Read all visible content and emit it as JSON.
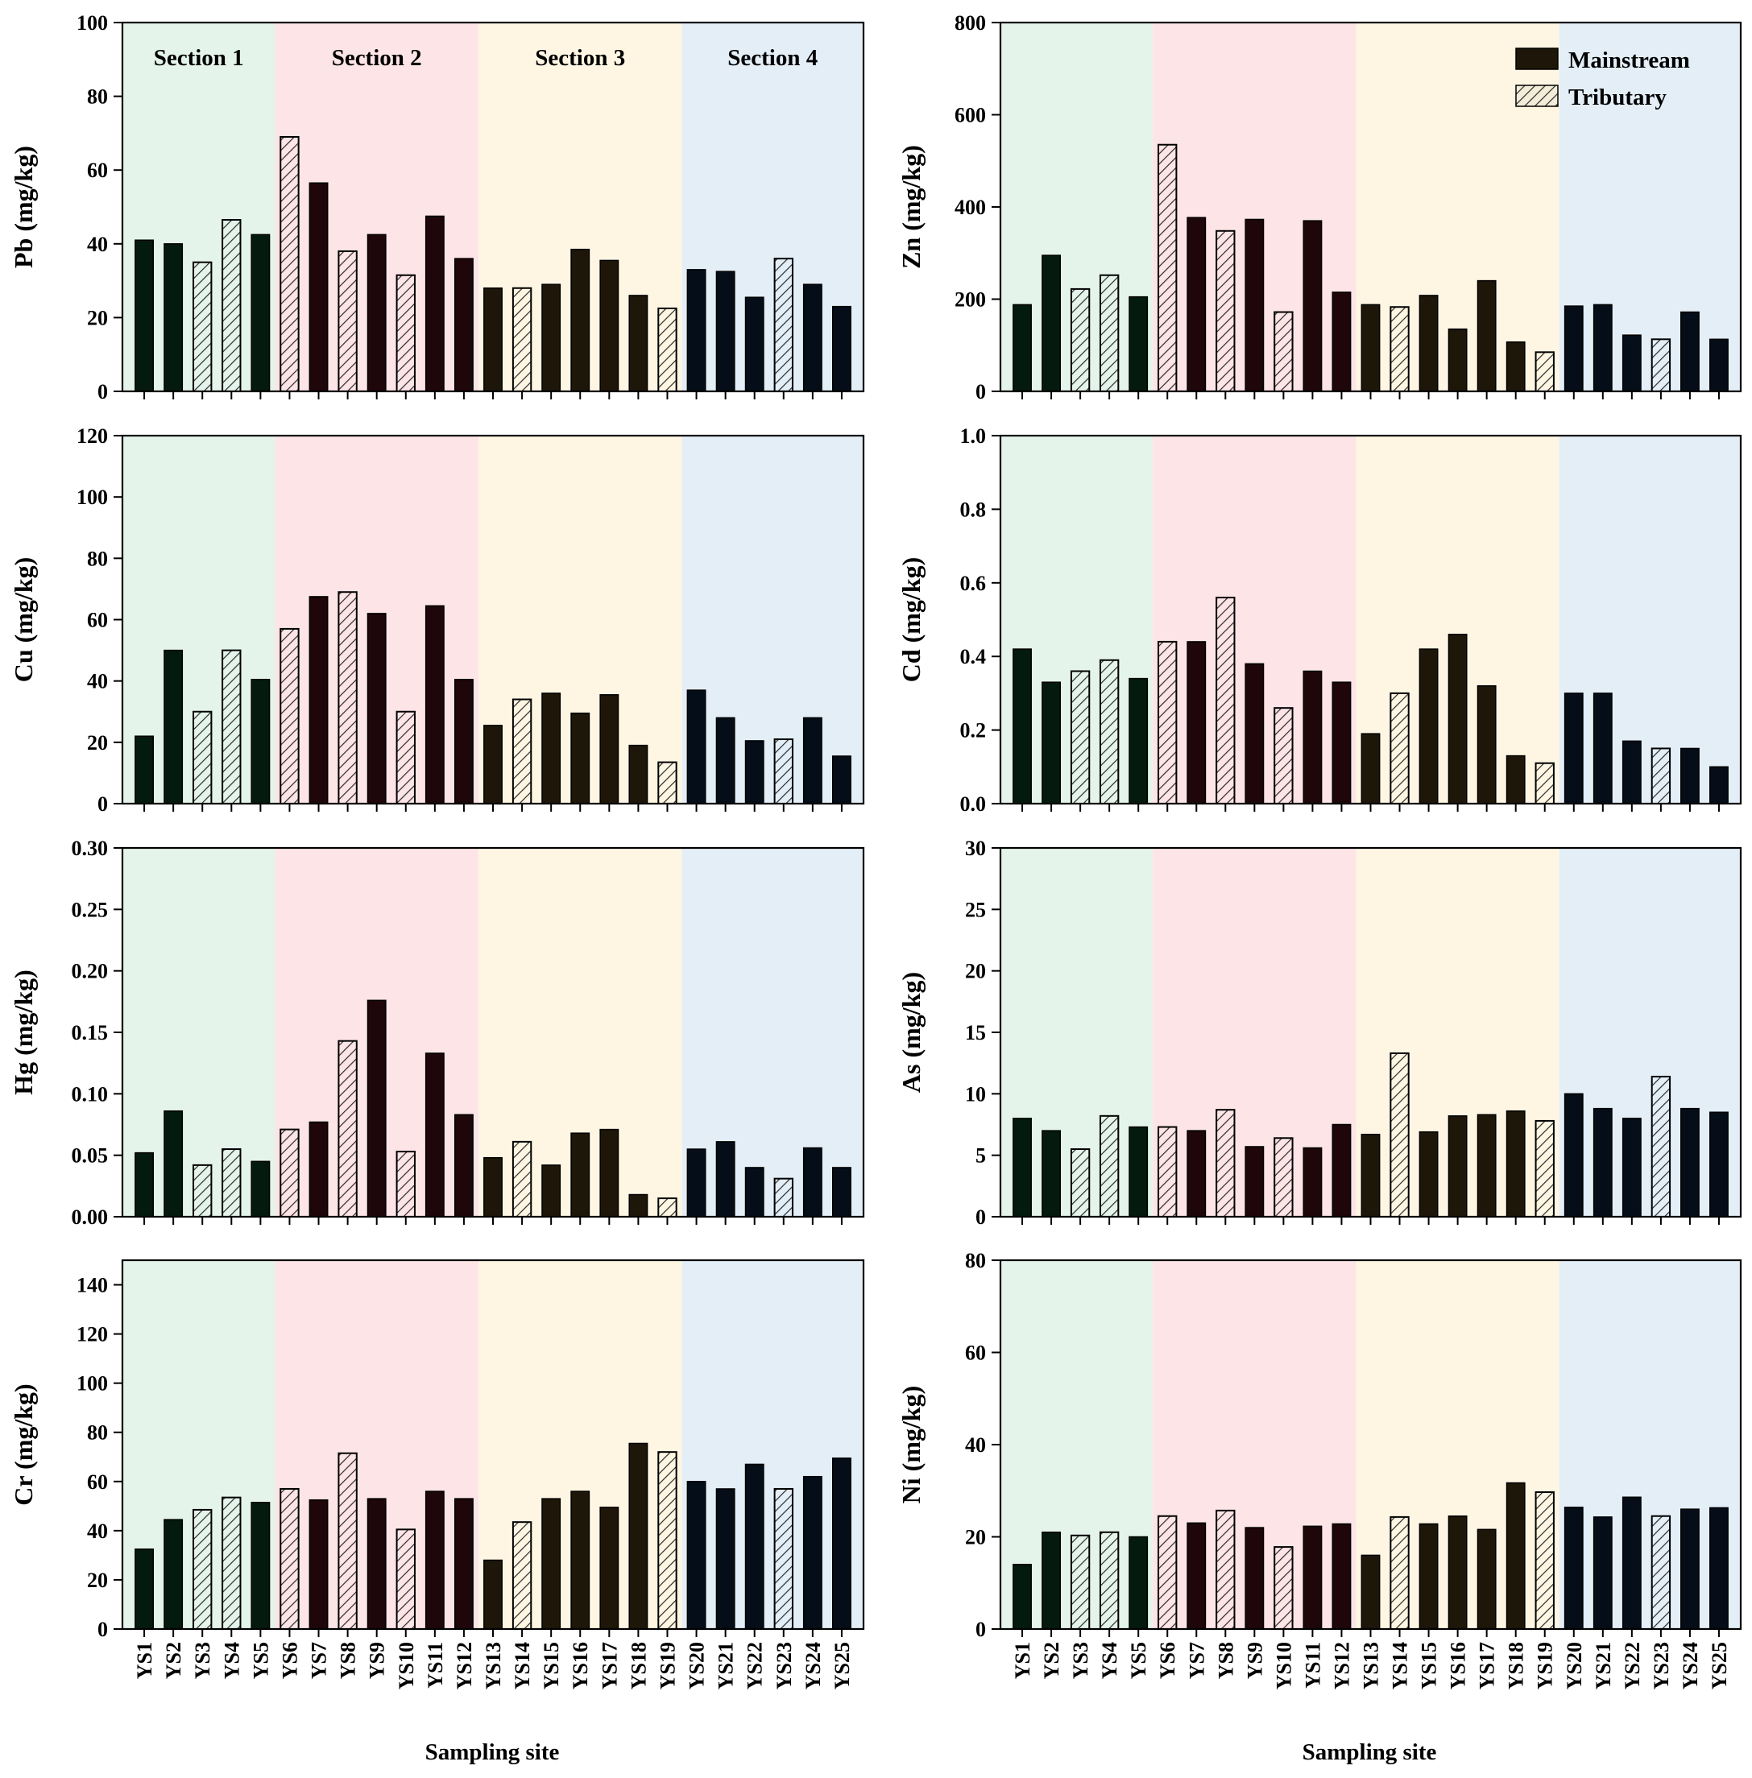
{
  "figure": {
    "xlabel": "Sampling site",
    "legend": {
      "placement": "top-right",
      "mainstream_label": "Mainstream",
      "tributary_label": "Tributary"
    },
    "section_labels": [
      "Section 1",
      "Section 2",
      "Section 3",
      "Section 4"
    ],
    "section_colors": [
      "#e4f4eb",
      "#fde4e6",
      "#fef6e3",
      "#e3eef7"
    ],
    "section_bar_colors": [
      "#041a0f",
      "#1e060a",
      "#1e1709",
      "#050d19"
    ],
    "tributary_sites": [
      "YS3",
      "YS4",
      "YS6",
      "YS8",
      "YS10",
      "YS14",
      "YS19",
      "YS23"
    ],
    "sections": [
      {
        "name": "Section 1",
        "sites": [
          "YS1",
          "YS2",
          "YS3",
          "YS4",
          "YS5"
        ]
      },
      {
        "name": "Section 2",
        "sites": [
          "YS6",
          "YS7",
          "YS8",
          "YS9",
          "YS10",
          "YS11",
          "YS12"
        ]
      },
      {
        "name": "Section 3",
        "sites": [
          "YS13",
          "YS14",
          "YS15",
          "YS16",
          "YS17",
          "YS18",
          "YS19"
        ]
      },
      {
        "name": "Section 4",
        "sites": [
          "YS20",
          "YS21",
          "YS22",
          "YS23",
          "YS24",
          "YS25"
        ]
      }
    ]
  },
  "chart_data": [
    {
      "type": "bar",
      "ylabel": "Pb (mg/kg)",
      "ylim": [
        0,
        100
      ],
      "yticks": [
        "0",
        "20",
        "40",
        "60",
        "80",
        "100"
      ],
      "categories": [
        "YS1",
        "YS2",
        "YS3",
        "YS4",
        "YS5",
        "YS6",
        "YS7",
        "YS8",
        "YS9",
        "YS10",
        "YS11",
        "YS12",
        "YS13",
        "YS14",
        "YS15",
        "YS16",
        "YS17",
        "YS18",
        "YS19",
        "YS20",
        "YS21",
        "YS22",
        "YS23",
        "YS24",
        "YS25"
      ],
      "values": [
        41,
        40,
        35,
        46.5,
        42.5,
        69,
        56.5,
        38,
        42.5,
        31.5,
        47.5,
        36,
        28,
        28,
        29,
        38.5,
        35.5,
        26,
        22.5,
        33,
        32.5,
        25.5,
        36,
        29,
        23
      ]
    },
    {
      "type": "bar",
      "ylabel": "Zn (mg/kg)",
      "ylim": [
        0,
        800
      ],
      "yticks": [
        "0",
        "200",
        "400",
        "600",
        "800"
      ],
      "categories": [
        "YS1",
        "YS2",
        "YS3",
        "YS4",
        "YS5",
        "YS6",
        "YS7",
        "YS8",
        "YS9",
        "YS10",
        "YS11",
        "YS12",
        "YS13",
        "YS14",
        "YS15",
        "YS16",
        "YS17",
        "YS18",
        "YS19",
        "YS20",
        "YS21",
        "YS22",
        "YS23",
        "YS24",
        "YS25"
      ],
      "values": [
        188,
        295,
        222,
        252,
        205,
        535,
        377,
        348,
        373,
        172,
        370,
        215,
        188,
        183,
        208,
        135,
        240,
        107,
        85,
        185,
        188,
        122,
        113,
        172,
        113
      ]
    },
    {
      "type": "bar",
      "ylabel": "Cu (mg/kg)",
      "ylim": [
        0,
        120
      ],
      "yticks": [
        "0",
        "20",
        "40",
        "60",
        "80",
        "100",
        "120"
      ],
      "categories": [
        "YS1",
        "YS2",
        "YS3",
        "YS4",
        "YS5",
        "YS6",
        "YS7",
        "YS8",
        "YS9",
        "YS10",
        "YS11",
        "YS12",
        "YS13",
        "YS14",
        "YS15",
        "YS16",
        "YS17",
        "YS18",
        "YS19",
        "YS20",
        "YS21",
        "YS22",
        "YS23",
        "YS24",
        "YS25"
      ],
      "values": [
        22,
        50,
        30,
        50,
        40.5,
        57,
        67.5,
        69,
        62,
        30,
        64.5,
        40.5,
        25.5,
        34,
        36,
        29.5,
        35.5,
        19,
        13.5,
        37,
        28,
        20.5,
        21,
        28,
        15.5
      ]
    },
    {
      "type": "bar",
      "ylabel": "Cd (mg/kg)",
      "ylim": [
        0,
        1.0
      ],
      "yticks": [
        "0.0",
        "0.2",
        "0.4",
        "0.6",
        "0.8",
        "1.0"
      ],
      "categories": [
        "YS1",
        "YS2",
        "YS3",
        "YS4",
        "YS5",
        "YS6",
        "YS7",
        "YS8",
        "YS9",
        "YS10",
        "YS11",
        "YS12",
        "YS13",
        "YS14",
        "YS15",
        "YS16",
        "YS17",
        "YS18",
        "YS19",
        "YS20",
        "YS21",
        "YS22",
        "YS23",
        "YS24",
        "YS25"
      ],
      "values": [
        0.42,
        0.33,
        0.36,
        0.39,
        0.34,
        0.44,
        0.44,
        0.56,
        0.38,
        0.26,
        0.36,
        0.33,
        0.19,
        0.3,
        0.42,
        0.46,
        0.32,
        0.13,
        0.11,
        0.3,
        0.3,
        0.17,
        0.15,
        0.15,
        0.1
      ]
    },
    {
      "type": "bar",
      "ylabel": "Hg (mg/kg)",
      "ylim": [
        0,
        0.3
      ],
      "yticks": [
        "0.00",
        "0.05",
        "0.10",
        "0.15",
        "0.20",
        "0.25",
        "0.30"
      ],
      "categories": [
        "YS1",
        "YS2",
        "YS3",
        "YS4",
        "YS5",
        "YS6",
        "YS7",
        "YS8",
        "YS9",
        "YS10",
        "YS11",
        "YS12",
        "YS13",
        "YS14",
        "YS15",
        "YS16",
        "YS17",
        "YS18",
        "YS19",
        "YS20",
        "YS21",
        "YS22",
        "YS23",
        "YS24",
        "YS25"
      ],
      "values": [
        0.052,
        0.086,
        0.042,
        0.055,
        0.045,
        0.071,
        0.077,
        0.143,
        0.176,
        0.053,
        0.133,
        0.083,
        0.048,
        0.061,
        0.042,
        0.068,
        0.071,
        0.018,
        0.015,
        0.055,
        0.061,
        0.04,
        0.031,
        0.056,
        0.04
      ]
    },
    {
      "type": "bar",
      "ylabel": "As (mg/kg)",
      "ylim": [
        0,
        30
      ],
      "yticks": [
        "0",
        "5",
        "10",
        "15",
        "20",
        "25",
        "30"
      ],
      "categories": [
        "YS1",
        "YS2",
        "YS3",
        "YS4",
        "YS5",
        "YS6",
        "YS7",
        "YS8",
        "YS9",
        "YS10",
        "YS11",
        "YS12",
        "YS13",
        "YS14",
        "YS15",
        "YS16",
        "YS17",
        "YS18",
        "YS19",
        "YS20",
        "YS21",
        "YS22",
        "YS23",
        "YS24",
        "YS25"
      ],
      "values": [
        8,
        7,
        5.5,
        8.2,
        7.3,
        7.3,
        7,
        8.7,
        5.7,
        6.4,
        5.6,
        7.5,
        6.7,
        13.3,
        6.9,
        8.2,
        8.3,
        8.6,
        7.8,
        10,
        8.8,
        8,
        11.4,
        8.8,
        8.5
      ]
    },
    {
      "type": "bar",
      "ylabel": "Cr (mg/kg)",
      "ylim": [
        0,
        150
      ],
      "yticks": [
        "0",
        "20",
        "40",
        "60",
        "80",
        "100",
        "120",
        "140"
      ],
      "categories": [
        "YS1",
        "YS2",
        "YS3",
        "YS4",
        "YS5",
        "YS6",
        "YS7",
        "YS8",
        "YS9",
        "YS10",
        "YS11",
        "YS12",
        "YS13",
        "YS14",
        "YS15",
        "YS16",
        "YS17",
        "YS18",
        "YS19",
        "YS20",
        "YS21",
        "YS22",
        "YS23",
        "YS24",
        "YS25"
      ],
      "values": [
        32.5,
        44.5,
        48.5,
        53.5,
        51.5,
        57,
        52.5,
        71.5,
        53,
        40.5,
        56,
        53,
        28,
        43.5,
        53,
        56,
        49.5,
        75.5,
        72,
        60,
        57,
        67,
        57,
        62,
        69.5
      ]
    },
    {
      "type": "bar",
      "ylabel": "Ni (mg/kg)",
      "ylim": [
        0,
        80
      ],
      "yticks": [
        "0",
        "20",
        "40",
        "60",
        "80"
      ],
      "categories": [
        "YS1",
        "YS2",
        "YS3",
        "YS4",
        "YS5",
        "YS6",
        "YS7",
        "YS8",
        "YS9",
        "YS10",
        "YS11",
        "YS12",
        "YS13",
        "YS14",
        "YS15",
        "YS16",
        "YS17",
        "YS18",
        "YS19",
        "YS20",
        "YS21",
        "YS22",
        "YS23",
        "YS24",
        "YS25"
      ],
      "values": [
        14,
        21,
        20.3,
        21,
        20,
        24.5,
        23,
        25.7,
        22,
        17.8,
        22.3,
        22.8,
        16,
        24.3,
        22.8,
        24.5,
        21.6,
        31.7,
        29.7,
        26.4,
        24.3,
        28.6,
        24.5,
        26,
        26.3
      ]
    }
  ]
}
